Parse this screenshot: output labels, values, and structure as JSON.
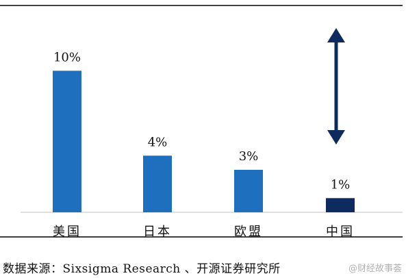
{
  "chart_data": {
    "type": "bar",
    "categories": [
      "美国",
      "日本",
      "欧盟",
      "中国"
    ],
    "values": [
      10,
      4,
      3,
      1
    ],
    "data_labels": [
      "10%",
      "4%",
      "3%",
      "1%"
    ],
    "ylim": [
      0,
      12
    ],
    "colors": [
      "#1f6fbf",
      "#1f6fbf",
      "#1f6fbf",
      "#0d2b5e"
    ],
    "annotation": "double-headed arrow above the 中国 bar",
    "arrow_color": "#0d2b5e",
    "grid": false,
    "legend": "none"
  },
  "source": "数据来源：Sixsigma Research 、开源证券研究所",
  "watermark": "@财经故事荟"
}
